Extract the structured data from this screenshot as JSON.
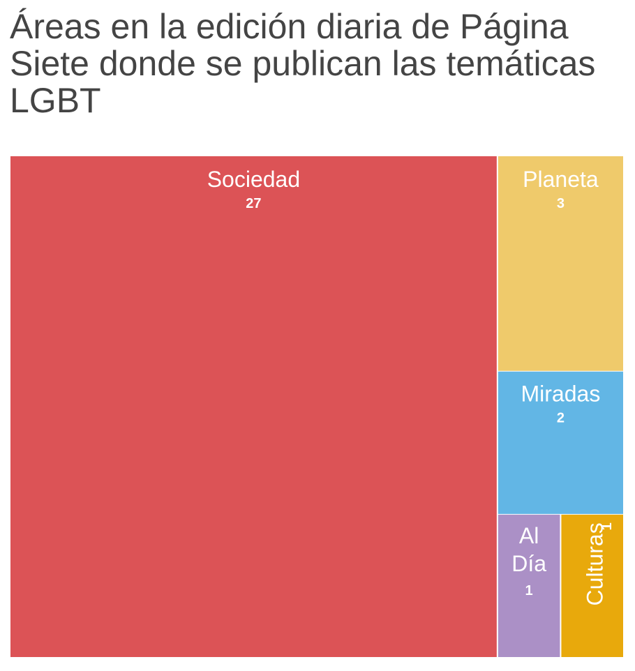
{
  "chart_data": {
    "type": "treemap",
    "title": "Áreas en la edición diaria de Página Siete donde se publican las temáticas LGBT",
    "items": [
      {
        "label": "Sociedad",
        "value": 27,
        "color": "#dc5356"
      },
      {
        "label": "Planeta",
        "value": 3,
        "color": "#efca6b"
      },
      {
        "label": "Miradas",
        "value": 2,
        "color": "#62b6e5"
      },
      {
        "label": "Al Día",
        "value": 1,
        "color": "#ab90c6"
      },
      {
        "label": "Culturas",
        "value": 1,
        "color": "#e8a90c"
      }
    ]
  }
}
